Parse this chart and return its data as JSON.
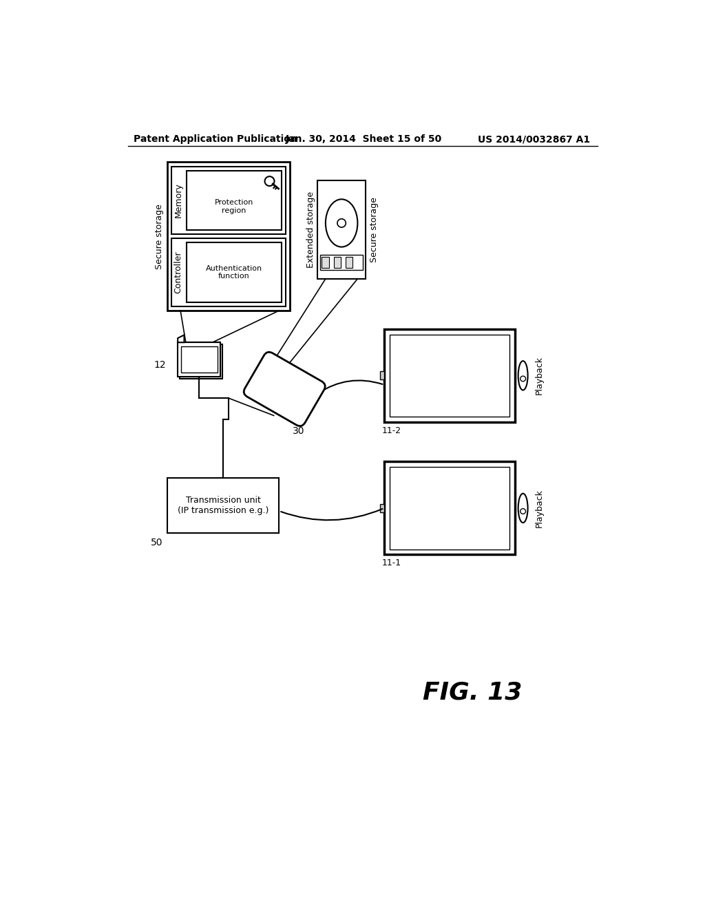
{
  "bg_color": "#ffffff",
  "header_left": "Patent Application Publication",
  "header_mid": "Jan. 30, 2014  Sheet 15 of 50",
  "header_right": "US 2014/0032867 A1",
  "fig_label": "FIG. 13",
  "secure_storage_label": "Secure storage",
  "extended_storage_label": "Extended storage",
  "secure_storage2_label": "Secure storage",
  "memory_label": "Memory",
  "protection_region_label": "Protection\nregion",
  "controller_label": "Controller",
  "auth_function_label": "Authentication\nfunction",
  "card_label": "12",
  "recorder_label": "30",
  "tx_unit_label": "50",
  "tx_box_label": "Transmission unit\n(IP transmission e.g.)",
  "playback_label1": "11-2",
  "playback_label2": "11-1",
  "playback_text": "Playback"
}
